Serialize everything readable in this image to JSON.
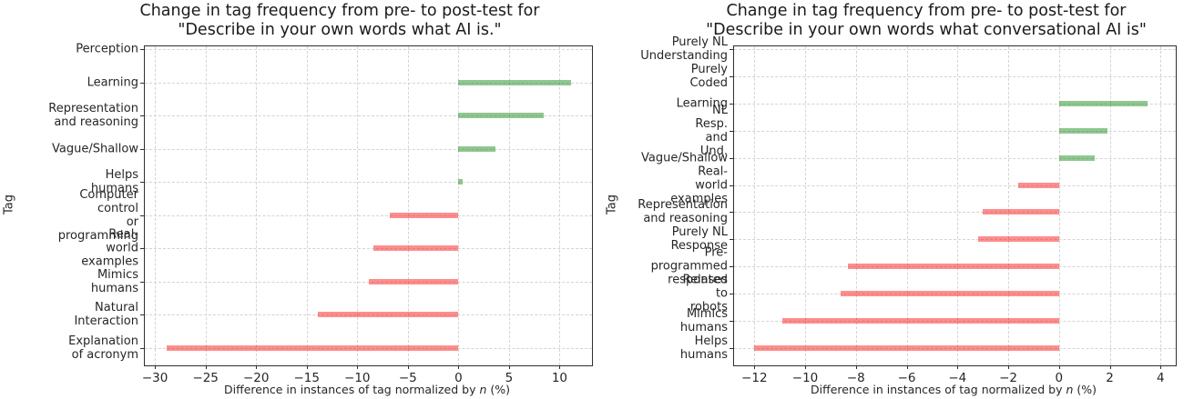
{
  "colors": {
    "positive_bar": "rgba(20,135,20,0.47)",
    "negative_bar": "rgba(250,15,15,0.47)",
    "grid": "#d4d4d4",
    "spine": "#2f2f2f",
    "text": "#1a1a1a"
  },
  "ylabel": "Tag",
  "xlabel": {
    "prefix": "Difference in instances of tag normalized by ",
    "italic_var": "n",
    "suffix": " (%)"
  },
  "chart_data": [
    {
      "type": "bar",
      "orientation": "horizontal",
      "title_lines": [
        "Change in tag frequency from pre- to post-test for",
        "\"Describe in your own words what AI is.\""
      ],
      "title": "Change in tag frequency from pre- to post-test for \"Describe in your own words what AI is.\"",
      "ylabel": "Tag",
      "xlabel": "Difference in instances of tag normalized by n (%)",
      "grid": true,
      "legend": null,
      "categories": [
        "Perception",
        "Learning",
        "Representation\nand reasoning",
        "Vague/Shallow",
        "Helps humans",
        "Computer control\nor programming",
        "Real-world\nexamples",
        "Mimics humans",
        "Natural Interaction",
        "Explanation\nof acronym"
      ],
      "values": [
        0,
        11.1,
        8.4,
        3.7,
        0.4,
        -6.8,
        -8.4,
        -8.9,
        -13.9,
        -28.8
      ],
      "xticks": [
        -30,
        -25,
        -20,
        -15,
        -10,
        -5,
        0,
        5,
        10
      ],
      "xlim": [
        -31,
        13.2
      ]
    },
    {
      "type": "bar",
      "orientation": "horizontal",
      "title_lines": [
        "Change in tag frequency from pre- to post-test for",
        "\"Describe in your own words what conversational AI is\""
      ],
      "title": "Change in tag frequency from pre- to post-test for \"Describe in your own words what conversational AI is\"",
      "ylabel": "Tag",
      "xlabel": "Difference in instances of tag normalized by n (%)",
      "grid": true,
      "legend": null,
      "categories": [
        "Purely NL\nUnderstanding",
        "Purely Coded",
        "Learning",
        "NL Resp. and\nUnd.",
        "Vague/Shallow",
        "Real-world\nexamples",
        "Representation\nand reasoning",
        "Purely NL\nResponse",
        "Pre-programmed\nresponses",
        "Related to\nrobots",
        "Mimics humans",
        "Helps humans"
      ],
      "values": [
        0,
        0,
        3.5,
        1.9,
        1.4,
        -1.6,
        -3.0,
        -3.2,
        -8.3,
        -8.6,
        -10.9,
        -12.0
      ],
      "xticks": [
        -12,
        -10,
        -8,
        -6,
        -4,
        -2,
        0,
        2,
        4
      ],
      "xlim": [
        -12.8,
        4.6
      ]
    }
  ]
}
